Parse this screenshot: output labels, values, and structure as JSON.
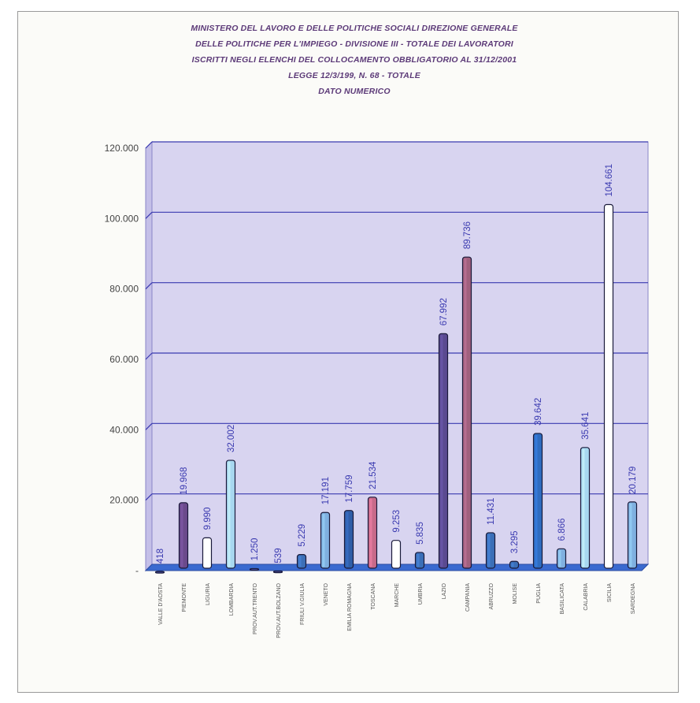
{
  "title_lines": [
    "MINISTERO DEL LAVORO E DELLE POLITICHE SOCIALI DIREZIONE GENERALE",
    "DELLE POLITICHE PER L'IMPIEGO - DIVISIONE III - TOTALE DEI LAVORATORI",
    "ISCRITTI NEGLI ELENCHI DEL COLLOCAMENTO OBBLIGATORIO AL 31/12/2001",
    "LEGGE 12/3/199, N. 68 - TOTALE",
    "DATO NUMERICO"
  ],
  "chart_data": {
    "type": "bar",
    "title": "MINISTERO DEL LAVORO E DELLE POLITICHE SOCIALI DIREZIONE GENERALE DELLE POLITICHE PER L'IMPIEGO - DIVISIONE III - TOTALE DEI LAVORATORI ISCRITTI NEGLI ELENCHI DEL COLLOCAMENTO OBBLIGATORIO AL 31/12/2001 LEGGE 12/3/199, N. 68 - TOTALE DATO NUMERICO",
    "categories": [
      "VALLE D'AOSTA",
      "PIEMONTE",
      "LIGURIA",
      "LOMBARDIA",
      "PROV.AUT.TRENTO",
      "PROV.AUT.BOLZANO",
      "FRIULI V.GIULIA",
      "VENETO",
      "EMILIA ROMAGNA",
      "TOSCANA",
      "MARCHE",
      "UMBRIA",
      "LAZIO",
      "CAMPANIA",
      "ABRUZZO",
      "MOLISE",
      "PUGLIA",
      "BASILICATA",
      "CALABRIA",
      "SICILIA",
      "SARDEGNA"
    ],
    "values": [
      418,
      19968,
      9990,
      32002,
      1250,
      539,
      5229,
      17191,
      17759,
      21534,
      9253,
      5835,
      67992,
      89736,
      11431,
      3295,
      39642,
      6866,
      35641,
      104661,
      20179
    ],
    "value_labels": [
      "418",
      "19.968",
      "9.990",
      "32.002",
      "1.250",
      "539",
      "5.229",
      "17.191",
      "17.759",
      "21.534",
      "9.253",
      "5.835",
      "67.992",
      "89.736",
      "11.431",
      "3.295",
      "39.642",
      "6.866",
      "35.641",
      "104.661",
      "20.179"
    ],
    "yticks": [
      0,
      20000,
      40000,
      60000,
      80000,
      100000,
      120000
    ],
    "ytick_labels": [
      "-",
      "20.000",
      "40.000",
      "60.000",
      "80.000",
      "100.000",
      "120.000"
    ],
    "ylim": [
      0,
      120000
    ],
    "grid": true,
    "bar_colors": [
      "#4a4ea8",
      "#6b4a8c",
      "#ffffff",
      "#a8d8f0",
      "#4a4ea8",
      "#4a4ea8",
      "#3b6fb8",
      "#7fb0e0",
      "#2f5ea8",
      "#c86a8a",
      "#ffffff",
      "#3b6fb8",
      "#5a4a90",
      "#a0607e",
      "#3b6fb8",
      "#3b6fb8",
      "#2f6cc0",
      "#7fb0e0",
      "#a8d8f0",
      "#ffffff",
      "#7fb0e0"
    ],
    "plot_bg": "#d8d4f0",
    "grid_color": "#3a3ab0",
    "label_color": "#3a3ab0"
  }
}
